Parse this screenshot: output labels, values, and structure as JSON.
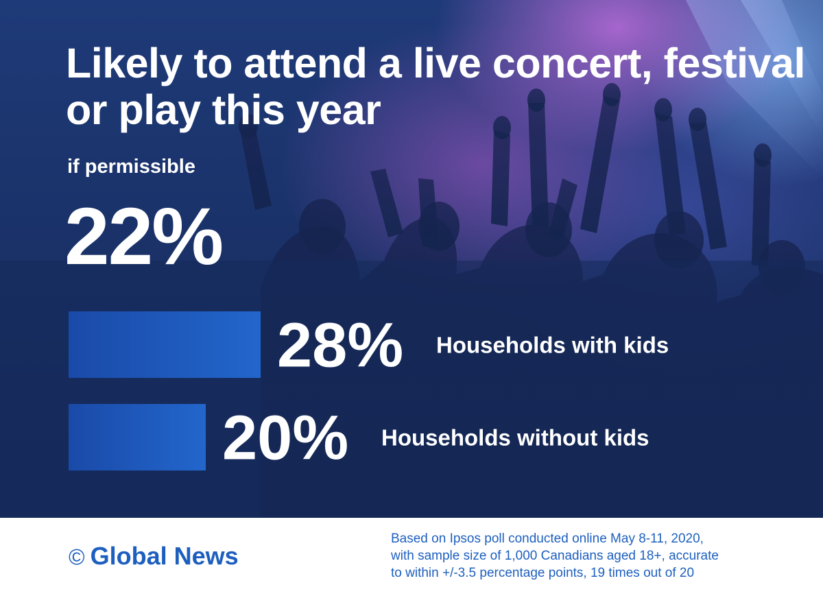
{
  "header": {
    "title": "Likely to attend a live concert, festival or play this year",
    "subtitle": "if permissible",
    "overall": "22%"
  },
  "chart_data": {
    "type": "bar",
    "orientation": "horizontal",
    "categories": [
      "Households with kids",
      "Households without kids"
    ],
    "values": [
      28,
      20
    ],
    "value_labels": [
      "28%",
      "20%"
    ],
    "unit": "%",
    "bar_color": "#1f5fc4",
    "grid": false
  },
  "footer": {
    "copyright_symbol": "©",
    "brand": "Global News",
    "brand_color": "#1d5fbf",
    "note": "Based on Ipsos poll conducted online May 8-11, 2020,\nwith sample size of 1,000 Canadians aged 18+, accurate\nto within +/-3.5 percentage points, 19 times out of 20"
  },
  "colors": {
    "background": "#1a3269",
    "accent": "#1f5fc4",
    "text": "#ffffff"
  }
}
